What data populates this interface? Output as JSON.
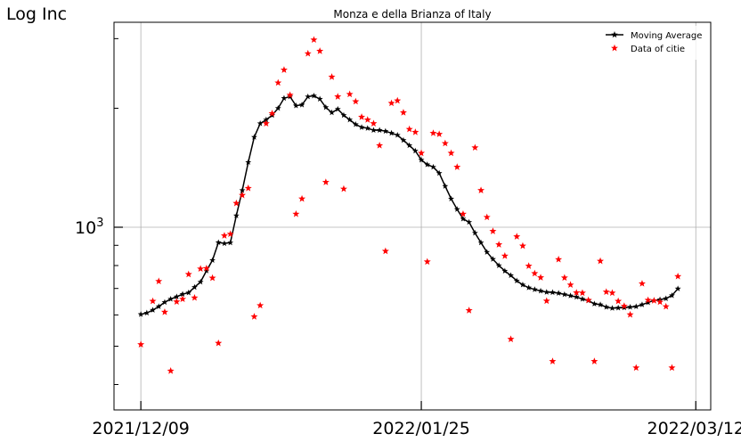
{
  "chart_data": {
    "type": "line",
    "title": "Monza e della Brianza of Italy",
    "ylabel": "Log Inc",
    "xlabel": "",
    "y_scale": "log",
    "y_tick_labels": [
      {
        "value": 1000,
        "base": "10",
        "exp": "3"
      }
    ],
    "x_tick_labels": [
      "2021/12/09",
      "2022/01/25",
      "2022/03/12"
    ],
    "x_start": "2021/12/09",
    "xlim_days": [
      -4.5,
      95.5
    ],
    "ylim": [
      345,
      3300
    ],
    "grid": true,
    "legend_position": "top-right",
    "legend": [
      "Moving Average",
      "Data of citie"
    ],
    "colors": {
      "moving_average": "#000000",
      "data": "#ff0000"
    },
    "series": [
      {
        "name": "Moving Average",
        "style": "line+star-marker",
        "points": [
          [
            0,
            602
          ],
          [
            1,
            607
          ],
          [
            2,
            617
          ],
          [
            3,
            630
          ],
          [
            4,
            646
          ],
          [
            5,
            658
          ],
          [
            6,
            667
          ],
          [
            7,
            677
          ],
          [
            8,
            683
          ],
          [
            9,
            705
          ],
          [
            10,
            727
          ],
          [
            11,
            776
          ],
          [
            12,
            825
          ],
          [
            13,
            915
          ],
          [
            14,
            910
          ],
          [
            15,
            914
          ],
          [
            16,
            1070
          ],
          [
            17,
            1240
          ],
          [
            18,
            1460
          ],
          [
            19,
            1690
          ],
          [
            20,
            1830
          ],
          [
            21,
            1870
          ],
          [
            22,
            1920
          ],
          [
            23,
            2000
          ],
          [
            24,
            2120
          ],
          [
            25,
            2140
          ],
          [
            26,
            2030
          ],
          [
            27,
            2040
          ],
          [
            28,
            2140
          ],
          [
            29,
            2150
          ],
          [
            30,
            2110
          ],
          [
            31,
            2010
          ],
          [
            32,
            1950
          ],
          [
            33,
            1990
          ],
          [
            34,
            1920
          ],
          [
            35,
            1870
          ],
          [
            36,
            1820
          ],
          [
            37,
            1790
          ],
          [
            38,
            1780
          ],
          [
            39,
            1760
          ],
          [
            40,
            1760
          ],
          [
            41,
            1750
          ],
          [
            42,
            1730
          ],
          [
            43,
            1710
          ],
          [
            44,
            1660
          ],
          [
            45,
            1610
          ],
          [
            46,
            1560
          ],
          [
            47,
            1480
          ],
          [
            48,
            1440
          ],
          [
            49,
            1420
          ],
          [
            50,
            1370
          ],
          [
            51,
            1270
          ],
          [
            52,
            1180
          ],
          [
            53,
            1110
          ],
          [
            54,
            1050
          ],
          [
            55,
            1030
          ],
          [
            56,
            967
          ],
          [
            57,
            914
          ],
          [
            58,
            865
          ],
          [
            59,
            830
          ],
          [
            60,
            800
          ],
          [
            61,
            775
          ],
          [
            62,
            755
          ],
          [
            63,
            732
          ],
          [
            64,
            715
          ],
          [
            65,
            703
          ],
          [
            66,
            696
          ],
          [
            67,
            690
          ],
          [
            68,
            685
          ],
          [
            69,
            684
          ],
          [
            70,
            681
          ],
          [
            71,
            676
          ],
          [
            72,
            671
          ],
          [
            73,
            666
          ],
          [
            74,
            658
          ],
          [
            75,
            652
          ],
          [
            76,
            640
          ],
          [
            77,
            637
          ],
          [
            78,
            628
          ],
          [
            79,
            624
          ],
          [
            80,
            625
          ],
          [
            81,
            626
          ],
          [
            82,
            628
          ],
          [
            83,
            630
          ],
          [
            84,
            637
          ],
          [
            85,
            645
          ],
          [
            86,
            653
          ],
          [
            87,
            656
          ],
          [
            88,
            660
          ],
          [
            89,
            672
          ],
          [
            90,
            699
          ]
        ]
      },
      {
        "name": "Data of citie",
        "style": "star-markers",
        "points": [
          [
            0,
            505
          ],
          [
            2,
            650
          ],
          [
            3,
            730
          ],
          [
            4,
            610
          ],
          [
            5,
            433
          ],
          [
            6,
            648
          ],
          [
            7,
            658
          ],
          [
            8,
            760
          ],
          [
            9,
            663
          ],
          [
            10,
            785
          ],
          [
            11,
            787
          ],
          [
            12,
            744
          ],
          [
            13,
            509
          ],
          [
            14,
            952
          ],
          [
            15,
            961
          ],
          [
            16,
            1150
          ],
          [
            17,
            1205
          ],
          [
            18,
            1255
          ],
          [
            19,
            594
          ],
          [
            20,
            634
          ],
          [
            21,
            1830
          ],
          [
            22,
            1940
          ],
          [
            23,
            2320
          ],
          [
            24,
            2500
          ],
          [
            25,
            2160
          ],
          [
            26,
            1080
          ],
          [
            27,
            1180
          ],
          [
            28,
            2750
          ],
          [
            29,
            2980
          ],
          [
            30,
            2790
          ],
          [
            31,
            1300
          ],
          [
            32,
            2400
          ],
          [
            33,
            2140
          ],
          [
            34,
            1250
          ],
          [
            35,
            2170
          ],
          [
            36,
            2080
          ],
          [
            37,
            1900
          ],
          [
            38,
            1870
          ],
          [
            39,
            1830
          ],
          [
            40,
            1610
          ],
          [
            41,
            870
          ],
          [
            42,
            2060
          ],
          [
            43,
            2090
          ],
          [
            44,
            1950
          ],
          [
            45,
            1770
          ],
          [
            46,
            1740
          ],
          [
            47,
            1540
          ],
          [
            48,
            818
          ],
          [
            49,
            1730
          ],
          [
            50,
            1720
          ],
          [
            51,
            1630
          ],
          [
            52,
            1540
          ],
          [
            53,
            1420
          ],
          [
            54,
            1080
          ],
          [
            55,
            616
          ],
          [
            56,
            1590
          ],
          [
            57,
            1240
          ],
          [
            58,
            1060
          ],
          [
            59,
            977
          ],
          [
            60,
            904
          ],
          [
            61,
            846
          ],
          [
            62,
            521
          ],
          [
            63,
            947
          ],
          [
            64,
            897
          ],
          [
            65,
            798
          ],
          [
            66,
            764
          ],
          [
            67,
            746
          ],
          [
            68,
            651
          ],
          [
            69,
            458
          ],
          [
            70,
            829
          ],
          [
            71,
            745
          ],
          [
            72,
            715
          ],
          [
            73,
            683
          ],
          [
            74,
            682
          ],
          [
            75,
            654
          ],
          [
            76,
            458
          ],
          [
            77,
            821
          ],
          [
            78,
            686
          ],
          [
            79,
            682
          ],
          [
            80,
            650
          ],
          [
            81,
            632
          ],
          [
            82,
            601
          ],
          [
            83,
            441
          ],
          [
            84,
            720
          ],
          [
            85,
            654
          ],
          [
            86,
            652
          ],
          [
            87,
            647
          ],
          [
            88,
            630
          ],
          [
            89,
            441
          ],
          [
            90,
            751
          ]
        ]
      }
    ]
  }
}
